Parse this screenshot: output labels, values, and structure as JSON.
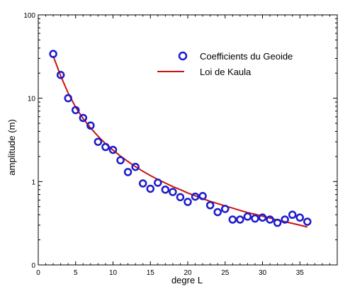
{
  "chart_data": {
    "type": "scatter",
    "xlabel": "degre L",
    "ylabel": "amplitude (m)",
    "xlim": [
      0,
      40
    ],
    "ylim_log": [
      0.1,
      100
    ],
    "y_scale": "log",
    "x_ticks": [
      0,
      5,
      10,
      15,
      20,
      25,
      30,
      35
    ],
    "x_tick_labels": [
      "0",
      "5",
      "10",
      "15",
      "20",
      "25",
      "30",
      "35"
    ],
    "y_ticks": [
      0.1,
      1,
      10,
      100
    ],
    "y_tick_labels": [
      "0",
      "1",
      "10",
      "100"
    ],
    "legend_position": "top-right",
    "series": [
      {
        "name": "Coefficients du Geoide",
        "kind": "scatter",
        "marker": "circle-open",
        "color": "#1a1acc",
        "x": [
          2,
          3,
          4,
          5,
          6,
          7,
          8,
          9,
          10,
          11,
          12,
          13,
          14,
          15,
          16,
          17,
          18,
          19,
          20,
          21,
          22,
          23,
          24,
          25,
          26,
          27,
          28,
          29,
          30,
          31,
          32,
          33,
          34,
          35,
          36
        ],
        "y": [
          34,
          19,
          10,
          7.2,
          5.8,
          4.7,
          3.0,
          2.6,
          2.4,
          1.8,
          1.3,
          1.5,
          0.95,
          0.82,
          0.97,
          0.8,
          0.75,
          0.65,
          0.57,
          0.66,
          0.67,
          0.52,
          0.43,
          0.47,
          0.35,
          0.35,
          0.38,
          0.36,
          0.37,
          0.35,
          0.32,
          0.35,
          0.4,
          0.37,
          0.33
        ]
      },
      {
        "name": "Loi de Kaula",
        "kind": "line",
        "color": "#cc1111",
        "x": [
          2,
          3,
          4,
          5,
          6,
          7,
          8,
          9,
          10,
          11,
          12,
          13,
          14,
          15,
          16,
          17,
          18,
          19,
          20,
          21,
          22,
          23,
          24,
          25,
          26,
          27,
          28,
          29,
          30,
          31,
          32,
          33,
          34,
          35,
          36
        ],
        "y": [
          32,
          18.5,
          11.5,
          7.8,
          5.7,
          4.4,
          3.5,
          2.85,
          2.38,
          2.02,
          1.74,
          1.51,
          1.33,
          1.18,
          1.06,
          0.96,
          0.87,
          0.8,
          0.73,
          0.675,
          0.625,
          0.58,
          0.545,
          0.51,
          0.48,
          0.45,
          0.425,
          0.405,
          0.385,
          0.365,
          0.345,
          0.33,
          0.315,
          0.3,
          0.285
        ]
      }
    ]
  },
  "colors": {
    "marker": "#1a1acc",
    "line": "#cc1111",
    "axis": "#000000"
  }
}
